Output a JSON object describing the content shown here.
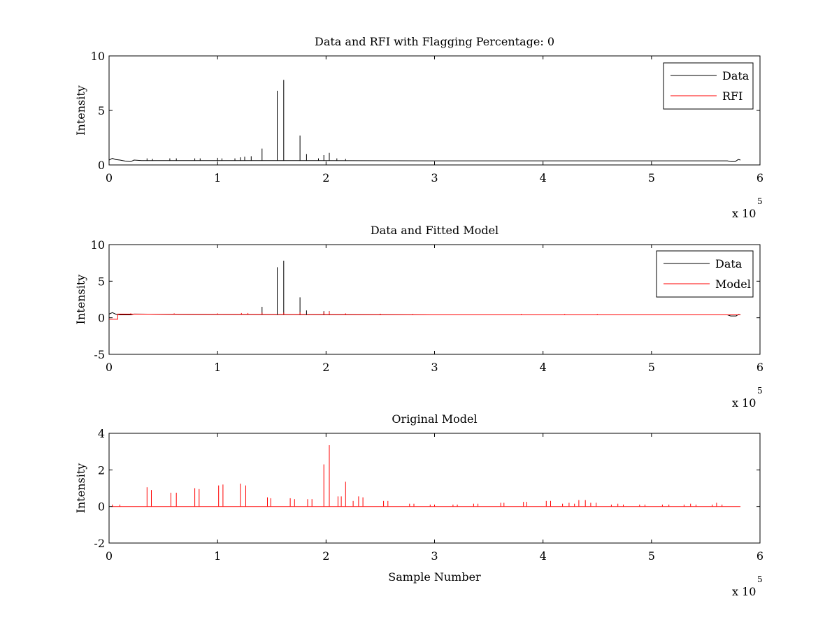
{
  "chart_data": [
    {
      "type": "line",
      "title": "Data and RFI with Flagging Percentage: 0",
      "xlabel": "",
      "ylabel": "Intensity",
      "xlim": [
        0,
        600000
      ],
      "ylim": [
        0,
        10
      ],
      "xtick_values": [
        0,
        100000,
        200000,
        300000,
        400000,
        500000,
        600000
      ],
      "xtick_labels": [
        "0",
        "1",
        "2",
        "3",
        "4",
        "5",
        "6"
      ],
      "ytick_values": [
        0,
        5,
        10
      ],
      "ytick_labels": [
        "0",
        "5",
        "10"
      ],
      "x_multiplier": {
        "base": "x 10",
        "exponent": "5"
      },
      "grid": false,
      "legend_position": "top-right",
      "baseline": [
        [
          0,
          0.45
        ],
        [
          3000,
          0.6
        ],
        [
          6000,
          0.5
        ],
        [
          10000,
          0.45
        ],
        [
          15000,
          0.35
        ],
        [
          20000,
          0.3
        ],
        [
          23000,
          0.45
        ],
        [
          30000,
          0.4
        ],
        [
          100000,
          0.4
        ],
        [
          200000,
          0.4
        ],
        [
          300000,
          0.38
        ],
        [
          400000,
          0.38
        ],
        [
          500000,
          0.38
        ],
        [
          570000,
          0.38
        ],
        [
          573000,
          0.3
        ],
        [
          577000,
          0.3
        ],
        [
          580000,
          0.5
        ],
        [
          582000,
          0.45
        ]
      ],
      "series": [
        {
          "name": "Data",
          "color": "#000000",
          "spikes": [
            [
              35000,
              0.6
            ],
            [
              40000,
              0.55
            ],
            [
              56000,
              0.6
            ],
            [
              62000,
              0.6
            ],
            [
              79000,
              0.6
            ],
            [
              84000,
              0.6
            ],
            [
              100000,
              0.65
            ],
            [
              104000,
              0.6
            ],
            [
              116000,
              0.6
            ],
            [
              121000,
              0.7
            ],
            [
              125000,
              0.75
            ],
            [
              131000,
              0.8
            ],
            [
              141000,
              1.5
            ],
            [
              155000,
              6.8
            ],
            [
              161000,
              7.8
            ],
            [
              176000,
              2.7
            ],
            [
              182000,
              1.0
            ],
            [
              193000,
              0.6
            ],
            [
              198000,
              0.9
            ],
            [
              203000,
              1.1
            ],
            [
              210000,
              0.6
            ],
            [
              218000,
              0.55
            ]
          ]
        },
        {
          "name": "RFI",
          "color": "#ff0000",
          "spikes": []
        }
      ]
    },
    {
      "type": "line",
      "title": "Data and Fitted Model",
      "xlabel": "",
      "ylabel": "Intensity",
      "xlim": [
        0,
        600000
      ],
      "ylim": [
        -5,
        10
      ],
      "xtick_values": [
        0,
        100000,
        200000,
        300000,
        400000,
        500000,
        600000
      ],
      "xtick_labels": [
        "0",
        "1",
        "2",
        "3",
        "4",
        "5",
        "6"
      ],
      "ytick_values": [
        -5,
        0,
        5,
        10
      ],
      "ytick_labels": [
        "-5",
        "0",
        "5",
        "10"
      ],
      "x_multiplier": {
        "base": "x 10",
        "exponent": "5"
      },
      "grid": false,
      "legend_position": "top-right",
      "baseline": [
        [
          0,
          0.5
        ],
        [
          3000,
          0.7
        ],
        [
          6000,
          0.5
        ],
        [
          10000,
          0.4
        ],
        [
          20000,
          0.4
        ],
        [
          23000,
          0.5
        ],
        [
          100000,
          0.45
        ],
        [
          300000,
          0.4
        ],
        [
          570000,
          0.4
        ],
        [
          573000,
          0.25
        ],
        [
          578000,
          0.25
        ],
        [
          580000,
          0.45
        ],
        [
          582000,
          0.4
        ]
      ],
      "model_baseline": [
        [
          0,
          -0.2
        ],
        [
          8000,
          -0.2
        ],
        [
          8000,
          0.5
        ],
        [
          300000,
          0.4
        ],
        [
          582000,
          0.4
        ]
      ],
      "series": [
        {
          "name": "Data",
          "color": "#000000",
          "spikes": [
            [
              141000,
              1.5
            ],
            [
              155000,
              6.9
            ],
            [
              161000,
              7.8
            ],
            [
              176000,
              2.8
            ],
            [
              182000,
              1.0
            ],
            [
              198000,
              0.9
            ],
            [
              203000,
              0.9
            ]
          ]
        },
        {
          "name": "Model",
          "color": "#ff0000",
          "spikes": [
            [
              20000,
              0.6
            ],
            [
              60000,
              0.6
            ],
            [
              100000,
              0.6
            ],
            [
              122000,
              0.65
            ],
            [
              128000,
              0.65
            ],
            [
              141000,
              0.7
            ],
            [
              161000,
              0.7
            ],
            [
              176000,
              0.75
            ],
            [
              198000,
              0.8
            ],
            [
              203000,
              0.85
            ],
            [
              218000,
              0.6
            ],
            [
              250000,
              0.55
            ],
            [
              280000,
              0.5
            ],
            [
              380000,
              0.5
            ],
            [
              420000,
              0.5
            ],
            [
              450000,
              0.5
            ]
          ]
        }
      ]
    },
    {
      "type": "line",
      "title": "Original Model",
      "xlabel": "Sample Number",
      "ylabel": "Intensity",
      "xlim": [
        0,
        600000
      ],
      "ylim": [
        -2,
        4
      ],
      "xtick_values": [
        0,
        100000,
        200000,
        300000,
        400000,
        500000,
        600000
      ],
      "xtick_labels": [
        "0",
        "1",
        "2",
        "3",
        "4",
        "5",
        "6"
      ],
      "ytick_values": [
        -2,
        0,
        2,
        4
      ],
      "ytick_labels": [
        "-2",
        "0",
        "2",
        "4"
      ],
      "x_multiplier": {
        "base": "x 10",
        "exponent": "5"
      },
      "grid": false,
      "legend_position": "none",
      "baseline": [
        [
          2000,
          0.0
        ],
        [
          582000,
          0.0
        ]
      ],
      "series": [
        {
          "name": "",
          "color": "#ff0000",
          "spikes": [
            [
              3000,
              0.1
            ],
            [
              10000,
              0.1
            ],
            [
              35000,
              1.05
            ],
            [
              39000,
              0.9
            ],
            [
              57000,
              0.75
            ],
            [
              62000,
              0.75
            ],
            [
              79000,
              1.0
            ],
            [
              83000,
              0.95
            ],
            [
              101000,
              1.15
            ],
            [
              105000,
              1.2
            ],
            [
              121000,
              1.25
            ],
            [
              126000,
              1.15
            ],
            [
              146000,
              0.5
            ],
            [
              149000,
              0.45
            ],
            [
              167000,
              0.45
            ],
            [
              171000,
              0.4
            ],
            [
              183000,
              0.4
            ],
            [
              187000,
              0.4
            ],
            [
              198000,
              2.3
            ],
            [
              203000,
              3.35
            ],
            [
              211000,
              0.55
            ],
            [
              214000,
              0.55
            ],
            [
              218000,
              1.35
            ],
            [
              225000,
              0.3
            ],
            [
              230000,
              0.55
            ],
            [
              234000,
              0.5
            ],
            [
              253000,
              0.3
            ],
            [
              257000,
              0.3
            ],
            [
              277000,
              0.15
            ],
            [
              281000,
              0.15
            ],
            [
              296000,
              0.1
            ],
            [
              300000,
              0.1
            ],
            [
              317000,
              0.1
            ],
            [
              321000,
              0.1
            ],
            [
              336000,
              0.15
            ],
            [
              340000,
              0.15
            ],
            [
              361000,
              0.2
            ],
            [
              364000,
              0.2
            ],
            [
              382000,
              0.25
            ],
            [
              385000,
              0.25
            ],
            [
              403000,
              0.3
            ],
            [
              407000,
              0.3
            ],
            [
              418000,
              0.15
            ],
            [
              424000,
              0.2
            ],
            [
              429000,
              0.15
            ],
            [
              433000,
              0.35
            ],
            [
              439000,
              0.35
            ],
            [
              444000,
              0.2
            ],
            [
              449000,
              0.2
            ],
            [
              463000,
              0.1
            ],
            [
              469000,
              0.15
            ],
            [
              474000,
              0.1
            ],
            [
              489000,
              0.1
            ],
            [
              494000,
              0.1
            ],
            [
              510000,
              0.1
            ],
            [
              516000,
              0.1
            ],
            [
              530000,
              0.1
            ],
            [
              536000,
              0.15
            ],
            [
              541000,
              0.1
            ],
            [
              556000,
              0.1
            ],
            [
              560000,
              0.2
            ],
            [
              565000,
              0.1
            ]
          ]
        }
      ]
    }
  ]
}
